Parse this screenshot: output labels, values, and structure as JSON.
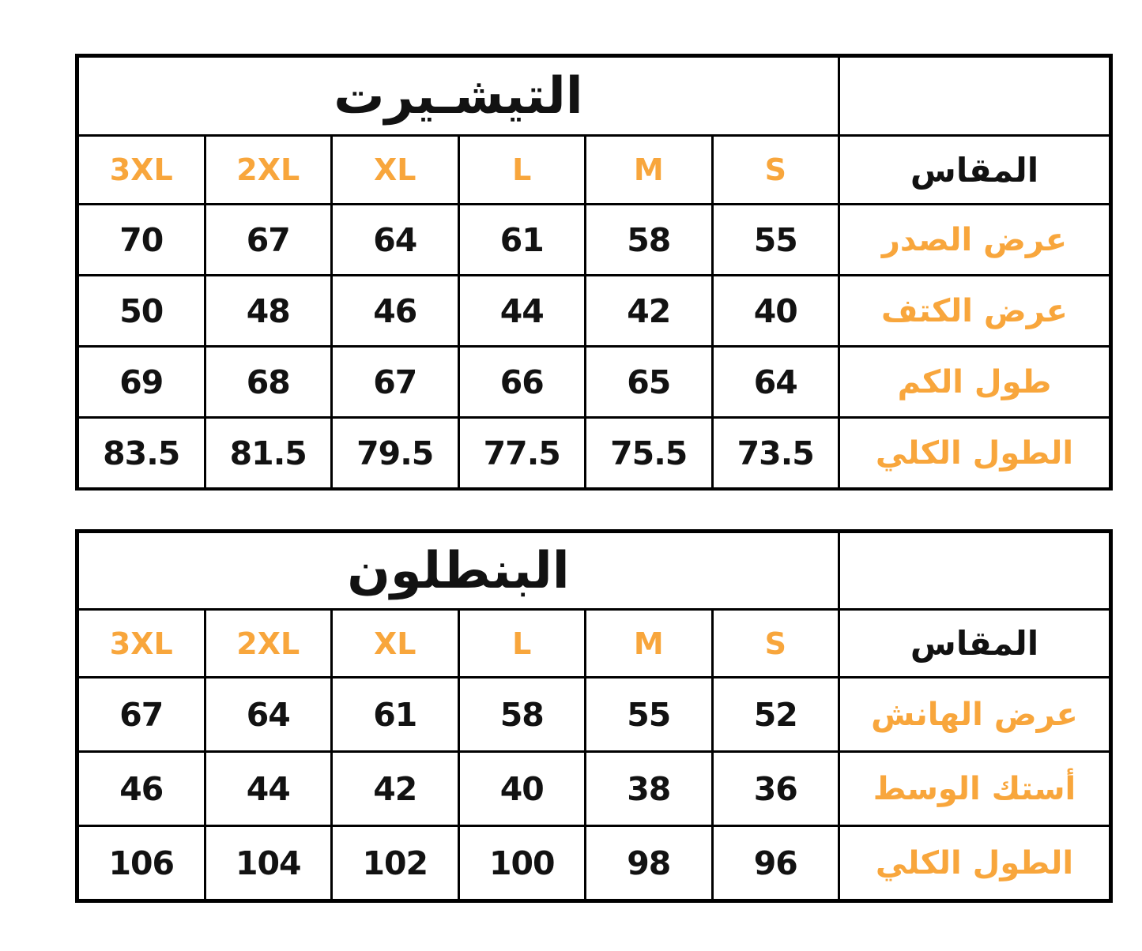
{
  "colors": {
    "accent_orange": "#F8A63C",
    "text_black": "#121212",
    "border_black": "#000000",
    "background": "#ffffff"
  },
  "tables": [
    {
      "title": "التيشـيرت",
      "size_header_label": "المقاس",
      "sizes": [
        "3XL",
        "2XL",
        "XL",
        "L",
        "M",
        "S"
      ],
      "rows": [
        {
          "label": "عرض الصدر",
          "values": [
            "70",
            "67",
            "64",
            "61",
            "58",
            "55"
          ]
        },
        {
          "label": "عرض الكتف",
          "values": [
            "50",
            "48",
            "46",
            "44",
            "42",
            "40"
          ]
        },
        {
          "label": "طول الكم",
          "values": [
            "69",
            "68",
            "67",
            "66",
            "65",
            "64"
          ]
        },
        {
          "label": "الطول الكلي",
          "values": [
            "83.5",
            "81.5",
            "79.5",
            "77.5",
            "75.5",
            "73.5"
          ]
        }
      ]
    },
    {
      "title": "البنطلون",
      "size_header_label": "المقاس",
      "sizes": [
        "3XL",
        "2XL",
        "XL",
        "L",
        "M",
        "S"
      ],
      "rows": [
        {
          "label": "عرض الهانش",
          "values": [
            "67",
            "64",
            "61",
            "58",
            "55",
            "52"
          ]
        },
        {
          "label": "أستك الوسط",
          "values": [
            "46",
            "44",
            "42",
            "40",
            "38",
            "36"
          ]
        },
        {
          "label": "الطول الكلي",
          "values": [
            "106",
            "104",
            "102",
            "100",
            "98",
            "96"
          ]
        }
      ]
    }
  ]
}
